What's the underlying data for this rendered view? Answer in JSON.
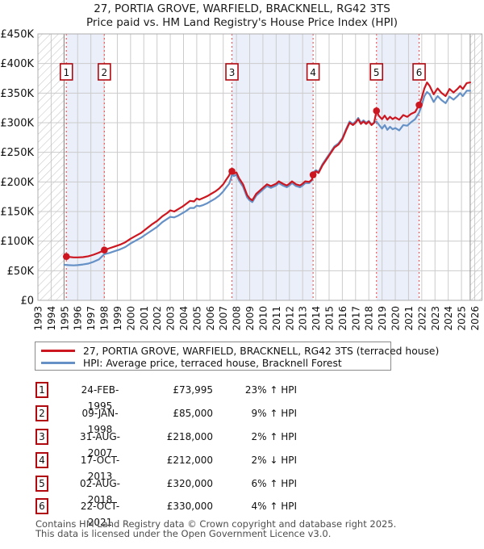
{
  "chart_data": {
    "type": "line",
    "title": {
      "line1": "27, PORTIA GROVE, WARFIELD, BRACKNELL, RG42 3TS",
      "line2": "Price paid vs. HM Land Registry's House Price Index (HPI)"
    },
    "xlabel": "",
    "ylabel": "",
    "xlim": [
      1993,
      2026.55
    ],
    "ylim": [
      0,
      450
    ],
    "grid": true,
    "x_ticks": [
      1993,
      1994,
      1995,
      1996,
      1997,
      1998,
      1999,
      2000,
      2001,
      2002,
      2003,
      2004,
      2005,
      2006,
      2007,
      2008,
      2009,
      2010,
      2011,
      2012,
      2013,
      2014,
      2015,
      2016,
      2017,
      2018,
      2019,
      2020,
      2021,
      2022,
      2023,
      2024,
      2025,
      2026
    ],
    "y_ticks": [
      {
        "v": 0,
        "label": "£0"
      },
      {
        "v": 50,
        "label": "£50K"
      },
      {
        "v": 100,
        "label": "£100K"
      },
      {
        "v": 150,
        "label": "£150K"
      },
      {
        "v": 200,
        "label": "£200K"
      },
      {
        "v": 250,
        "label": "£250K"
      },
      {
        "v": 300,
        "label": "£300K"
      },
      {
        "v": 350,
        "label": "£350K"
      },
      {
        "v": 400,
        "label": "£400K"
      },
      {
        "v": 450,
        "label": "£450K"
      }
    ],
    "data_range": [
      1994.97,
      2025.66
    ],
    "shaded_bands": [
      [
        1995.15,
        1998.02
      ],
      [
        2007.66,
        2013.79
      ],
      [
        2018.58,
        2021.8
      ]
    ],
    "band_color": "#eaeffa",
    "grid_color": "#cccccc",
    "hatch_color": "#c0c0c0",
    "boundary_color": "#8c8c8c",
    "border_color": "#adadad",
    "marker_line_color": "#f25b5b",
    "marker_box_border": "#b00910",
    "values_unit": "GBP thousands",
    "series": [
      {
        "name": "price-paid",
        "legend": "27, PORTIA GROVE, WARFIELD, BRACKNELL, RG42 3TS (terraced house)",
        "color": "#cc1620",
        "points": [
          [
            1995.0,
            74
          ],
          [
            1995.3,
            73.5
          ],
          [
            1995.7,
            72.5
          ],
          [
            1996.0,
            72.5
          ],
          [
            1996.4,
            73
          ],
          [
            1996.8,
            74.5
          ],
          [
            1997.2,
            77
          ],
          [
            1997.6,
            80.5
          ],
          [
            1998.02,
            85
          ],
          [
            1998.4,
            88
          ],
          [
            1998.8,
            91
          ],
          [
            1999.2,
            94
          ],
          [
            1999.6,
            98
          ],
          [
            2000.0,
            104
          ],
          [
            2000.4,
            109
          ],
          [
            2000.8,
            114
          ],
          [
            2001.2,
            121
          ],
          [
            2001.6,
            128
          ],
          [
            2002.0,
            134
          ],
          [
            2002.4,
            142
          ],
          [
            2002.8,
            148
          ],
          [
            2003.0,
            152
          ],
          [
            2003.3,
            150
          ],
          [
            2003.6,
            154
          ],
          [
            2003.9,
            158
          ],
          [
            2004.2,
            163
          ],
          [
            2004.5,
            168
          ],
          [
            2004.8,
            167
          ],
          [
            2005.0,
            172
          ],
          [
            2005.2,
            170
          ],
          [
            2005.5,
            173
          ],
          [
            2005.8,
            176
          ],
          [
            2006.1,
            180
          ],
          [
            2006.4,
            184
          ],
          [
            2006.7,
            189
          ],
          [
            2007.0,
            196
          ],
          [
            2007.2,
            203
          ],
          [
            2007.45,
            211
          ],
          [
            2007.6,
            220
          ],
          [
            2007.66,
            218
          ],
          [
            2007.8,
            214
          ],
          [
            2008.0,
            216
          ],
          [
            2008.2,
            206
          ],
          [
            2008.5,
            196
          ],
          [
            2008.8,
            178
          ],
          [
            2009.0,
            172
          ],
          [
            2009.2,
            169
          ],
          [
            2009.5,
            180
          ],
          [
            2009.8,
            186
          ],
          [
            2010.0,
            190
          ],
          [
            2010.3,
            196
          ],
          [
            2010.6,
            193
          ],
          [
            2011.0,
            197
          ],
          [
            2011.2,
            201
          ],
          [
            2011.5,
            197
          ],
          [
            2011.8,
            194
          ],
          [
            2012.0,
            197
          ],
          [
            2012.2,
            201
          ],
          [
            2012.5,
            196
          ],
          [
            2012.8,
            194
          ],
          [
            2013.0,
            197
          ],
          [
            2013.2,
            201
          ],
          [
            2013.5,
            200
          ],
          [
            2013.7,
            204
          ],
          [
            2013.79,
            212
          ],
          [
            2014.0,
            218
          ],
          [
            2014.2,
            215
          ],
          [
            2014.5,
            228
          ],
          [
            2014.8,
            238
          ],
          [
            2015.1,
            248
          ],
          [
            2015.4,
            258
          ],
          [
            2015.7,
            263
          ],
          [
            2016.0,
            272
          ],
          [
            2016.3,
            288
          ],
          [
            2016.55,
            300
          ],
          [
            2016.8,
            296
          ],
          [
            2017.0,
            300
          ],
          [
            2017.2,
            306
          ],
          [
            2017.4,
            298
          ],
          [
            2017.6,
            302
          ],
          [
            2017.8,
            298
          ],
          [
            2018.0,
            302
          ],
          [
            2018.2,
            296
          ],
          [
            2018.4,
            300
          ],
          [
            2018.58,
            320
          ],
          [
            2018.75,
            312
          ],
          [
            2019.0,
            306
          ],
          [
            2019.2,
            312
          ],
          [
            2019.4,
            305
          ],
          [
            2019.6,
            310
          ],
          [
            2019.8,
            306
          ],
          [
            2020.0,
            309
          ],
          [
            2020.3,
            305
          ],
          [
            2020.6,
            313
          ],
          [
            2020.9,
            310
          ],
          [
            2021.2,
            315
          ],
          [
            2021.5,
            318
          ],
          [
            2021.8,
            330
          ],
          [
            2022.0,
            342
          ],
          [
            2022.2,
            358
          ],
          [
            2022.4,
            368
          ],
          [
            2022.6,
            362
          ],
          [
            2022.9,
            348
          ],
          [
            2023.2,
            358
          ],
          [
            2023.5,
            350
          ],
          [
            2023.8,
            345
          ],
          [
            2024.1,
            357
          ],
          [
            2024.4,
            351
          ],
          [
            2024.7,
            357
          ],
          [
            2024.9,
            362
          ],
          [
            2025.1,
            357
          ],
          [
            2025.4,
            367
          ],
          [
            2025.66,
            368
          ]
        ]
      },
      {
        "name": "hpi",
        "legend": "HPI: Average price, terraced house, Bracknell Forest",
        "color": "#6691c6",
        "points": [
          [
            1995.0,
            60
          ],
          [
            1995.3,
            59.5
          ],
          [
            1995.7,
            59
          ],
          [
            1996.0,
            59.5
          ],
          [
            1996.4,
            60.5
          ],
          [
            1996.8,
            62
          ],
          [
            1997.2,
            65
          ],
          [
            1997.6,
            69
          ],
          [
            1998.02,
            78
          ],
          [
            1998.4,
            80
          ],
          [
            1998.8,
            83
          ],
          [
            1999.2,
            86
          ],
          [
            1999.6,
            90
          ],
          [
            2000.0,
            96
          ],
          [
            2000.4,
            101
          ],
          [
            2000.8,
            106
          ],
          [
            2001.2,
            112
          ],
          [
            2001.6,
            118
          ],
          [
            2002.0,
            124
          ],
          [
            2002.4,
            132
          ],
          [
            2002.8,
            138
          ],
          [
            2003.0,
            141
          ],
          [
            2003.3,
            140
          ],
          [
            2003.6,
            143
          ],
          [
            2003.9,
            147
          ],
          [
            2004.2,
            151
          ],
          [
            2004.5,
            156
          ],
          [
            2004.8,
            156
          ],
          [
            2005.0,
            160
          ],
          [
            2005.2,
            159
          ],
          [
            2005.5,
            161
          ],
          [
            2005.8,
            164
          ],
          [
            2006.1,
            168
          ],
          [
            2006.4,
            172
          ],
          [
            2006.7,
            177
          ],
          [
            2007.0,
            184
          ],
          [
            2007.2,
            190
          ],
          [
            2007.45,
            197
          ],
          [
            2007.6,
            207
          ],
          [
            2007.66,
            213
          ],
          [
            2007.8,
            210
          ],
          [
            2008.0,
            212
          ],
          [
            2008.2,
            202
          ],
          [
            2008.5,
            192
          ],
          [
            2008.8,
            174
          ],
          [
            2009.0,
            169
          ],
          [
            2009.2,
            166
          ],
          [
            2009.5,
            177
          ],
          [
            2009.8,
            183
          ],
          [
            2010.0,
            187
          ],
          [
            2010.3,
            193
          ],
          [
            2010.6,
            190
          ],
          [
            2011.0,
            194
          ],
          [
            2011.2,
            198
          ],
          [
            2011.5,
            194
          ],
          [
            2011.8,
            191
          ],
          [
            2012.0,
            194
          ],
          [
            2012.2,
            198
          ],
          [
            2012.5,
            193
          ],
          [
            2012.8,
            191
          ],
          [
            2013.0,
            194
          ],
          [
            2013.2,
            198
          ],
          [
            2013.5,
            198
          ],
          [
            2013.7,
            203
          ],
          [
            2013.79,
            216
          ],
          [
            2014.0,
            220
          ],
          [
            2014.2,
            217
          ],
          [
            2014.5,
            230
          ],
          [
            2014.8,
            240
          ],
          [
            2015.1,
            250
          ],
          [
            2015.4,
            260
          ],
          [
            2015.7,
            265
          ],
          [
            2016.0,
            274
          ],
          [
            2016.3,
            290
          ],
          [
            2016.55,
            302
          ],
          [
            2016.8,
            298
          ],
          [
            2017.0,
            302
          ],
          [
            2017.2,
            308
          ],
          [
            2017.4,
            300
          ],
          [
            2017.6,
            304
          ],
          [
            2017.8,
            300
          ],
          [
            2018.0,
            303
          ],
          [
            2018.2,
            297
          ],
          [
            2018.4,
            300
          ],
          [
            2018.58,
            302
          ],
          [
            2018.75,
            297
          ],
          [
            2019.0,
            290
          ],
          [
            2019.2,
            296
          ],
          [
            2019.4,
            288
          ],
          [
            2019.6,
            293
          ],
          [
            2019.8,
            289
          ],
          [
            2020.0,
            291
          ],
          [
            2020.3,
            287
          ],
          [
            2020.6,
            296
          ],
          [
            2020.9,
            295
          ],
          [
            2021.2,
            301
          ],
          [
            2021.5,
            306
          ],
          [
            2021.8,
            317
          ],
          [
            2022.0,
            330
          ],
          [
            2022.2,
            345
          ],
          [
            2022.4,
            352
          ],
          [
            2022.6,
            348
          ],
          [
            2022.9,
            335
          ],
          [
            2023.2,
            345
          ],
          [
            2023.5,
            338
          ],
          [
            2023.8,
            333
          ],
          [
            2024.1,
            344
          ],
          [
            2024.4,
            339
          ],
          [
            2024.7,
            345
          ],
          [
            2024.9,
            350
          ],
          [
            2025.1,
            345
          ],
          [
            2025.4,
            354
          ],
          [
            2025.66,
            354
          ]
        ]
      }
    ],
    "markers": [
      {
        "n": "1",
        "year": 1995.15,
        "value": 73.995
      },
      {
        "n": "2",
        "year": 1998.02,
        "value": 85
      },
      {
        "n": "3",
        "year": 2007.66,
        "value": 218
      },
      {
        "n": "4",
        "year": 2013.79,
        "value": 212
      },
      {
        "n": "5",
        "year": 2018.58,
        "value": 320
      },
      {
        "n": "6",
        "year": 2021.8,
        "value": 330
      }
    ]
  },
  "sales": [
    {
      "n": "1",
      "date": "24-FEB-1995",
      "price": "£73,995",
      "hpi_diff": "23% ↑ HPI"
    },
    {
      "n": "2",
      "date": "09-JAN-1998",
      "price": "£85,000",
      "hpi_diff": "9% ↑ HPI"
    },
    {
      "n": "3",
      "date": "31-AUG-2007",
      "price": "£218,000",
      "hpi_diff": "2% ↑ HPI"
    },
    {
      "n": "4",
      "date": "17-OCT-2013",
      "price": "£212,000",
      "hpi_diff": "2% ↓ HPI"
    },
    {
      "n": "5",
      "date": "02-AUG-2018",
      "price": "£320,000",
      "hpi_diff": "6% ↑ HPI"
    },
    {
      "n": "6",
      "date": "22-OCT-2021",
      "price": "£330,000",
      "hpi_diff": "4% ↑ HPI"
    }
  ],
  "footer": {
    "line1": "Contains HM Land Registry data © Crown copyright and database right 2025.",
    "line2": "This data is licensed under the Open Government Licence v3.0."
  }
}
